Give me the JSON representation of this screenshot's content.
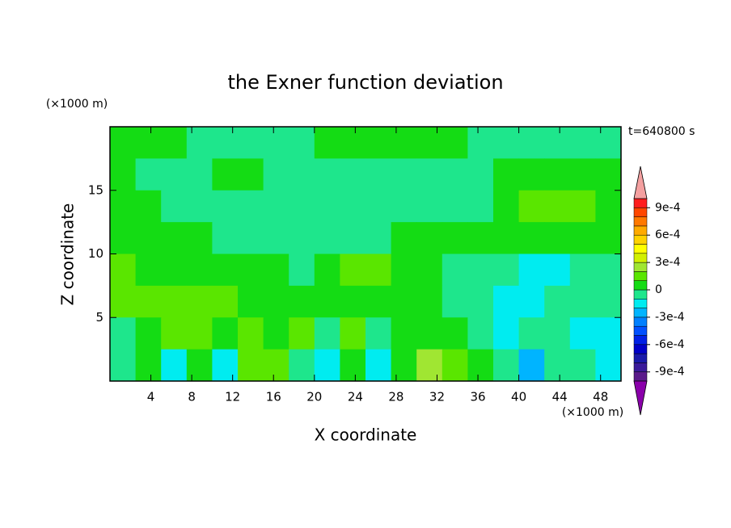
{
  "chart_data": {
    "type": "contour",
    "title": "the Exner function deviation",
    "x_label": "X coordinate",
    "y_label": "Z coordinate",
    "x_unit": "(×1000 m)",
    "y_unit": "(×1000 m)",
    "time_label": "t=640800 s",
    "xlim": [
      0,
      50
    ],
    "ylim": [
      0,
      20
    ],
    "xticks": [
      4,
      8,
      12,
      16,
      20,
      24,
      28,
      32,
      36,
      40,
      44,
      48
    ],
    "yticks": [
      5,
      10,
      15
    ],
    "x": [
      1.25,
      3.75,
      6.25,
      8.75,
      11.25,
      13.75,
      16.25,
      18.75,
      21.25,
      23.75,
      26.25,
      28.75,
      31.25,
      33.75,
      36.25,
      38.75,
      41.25,
      43.75,
      46.25,
      48.75
    ],
    "y": [
      18.75,
      16.25,
      13.75,
      11.25,
      8.75,
      6.25,
      3.75,
      1.25
    ],
    "z": [
      [
        5e-05,
        5e-05,
        5e-05,
        -5e-05,
        -5e-05,
        -5e-05,
        -5e-05,
        -5e-05,
        5e-05,
        5e-05,
        5e-05,
        5e-05,
        5e-05,
        5e-05,
        -5e-05,
        -5e-05,
        -5e-05,
        -5e-05,
        -5e-05,
        -5e-05
      ],
      [
        5e-05,
        -5e-05,
        -5e-05,
        -5e-05,
        5e-05,
        5e-05,
        -5e-05,
        -5e-05,
        -5e-05,
        -5e-05,
        -5e-05,
        -5e-05,
        -5e-05,
        -5e-05,
        -5e-05,
        5e-05,
        5e-05,
        5e-05,
        5e-05,
        5e-05
      ],
      [
        5e-05,
        5e-05,
        -5e-05,
        -5e-05,
        -5e-05,
        -5e-05,
        -5e-05,
        -5e-05,
        -5e-05,
        -5e-05,
        -5e-05,
        -5e-05,
        -5e-05,
        -5e-05,
        -5e-05,
        5e-05,
        0.00015,
        0.00015,
        0.00015,
        5e-05
      ],
      [
        5e-05,
        5e-05,
        5e-05,
        5e-05,
        -5e-05,
        -5e-05,
        -5e-05,
        -5e-05,
        -5e-05,
        -5e-05,
        -5e-05,
        5e-05,
        5e-05,
        5e-05,
        5e-05,
        5e-05,
        5e-05,
        5e-05,
        5e-05,
        5e-05
      ],
      [
        0.00015,
        5e-05,
        5e-05,
        5e-05,
        5e-05,
        5e-05,
        5e-05,
        -5e-05,
        5e-05,
        0.00015,
        0.00015,
        5e-05,
        5e-05,
        -5e-05,
        -5e-05,
        -5e-05,
        -0.00015,
        -0.00015,
        -5e-05,
        -5e-05
      ],
      [
        0.00015,
        0.00015,
        0.00015,
        0.00015,
        0.00015,
        5e-05,
        5e-05,
        5e-05,
        5e-05,
        5e-05,
        5e-05,
        5e-05,
        5e-05,
        -5e-05,
        -5e-05,
        -0.00015,
        -0.00015,
        -5e-05,
        -5e-05,
        -5e-05
      ],
      [
        -5e-05,
        5e-05,
        0.00015,
        0.00015,
        5e-05,
        0.00015,
        5e-05,
        0.00015,
        -5e-05,
        0.00015,
        -5e-05,
        5e-05,
        5e-05,
        5e-05,
        -5e-05,
        -0.00015,
        -5e-05,
        -5e-05,
        -0.00015,
        -0.00015
      ],
      [
        -5e-05,
        5e-05,
        -0.00015,
        5e-05,
        -0.00015,
        0.00015,
        0.00015,
        -5e-05,
        -0.00015,
        5e-05,
        -0.00015,
        5e-05,
        0.00025,
        0.00015,
        5e-05,
        -5e-05,
        -0.00025,
        -5e-05,
        -5e-05,
        -0.00015
      ]
    ],
    "levels": [
      -0.001,
      -0.0009,
      -0.0008,
      -0.0007,
      -0.0006,
      -0.0005,
      -0.0004,
      -0.0003,
      -0.0002,
      -0.0001,
      0,
      0.0001,
      0.0002,
      0.0003,
      0.0004,
      0.0005,
      0.0006,
      0.0007,
      0.0008,
      0.0009,
      0.001
    ],
    "colors": [
      "#5a1a8a",
      "#3a1a9a",
      "#1a1aaa",
      "#0000c8",
      "#0020e6",
      "#0050ff",
      "#0080ff",
      "#00b4ff",
      "#00ecf0",
      "#1ee68c",
      "#14dc14",
      "#5ae600",
      "#a0e632",
      "#d2f000",
      "#ffff00",
      "#ffd200",
      "#ffaa00",
      "#ff7800",
      "#ff4600",
      "#ff1e1e"
    ],
    "under_color": "#8a00aa",
    "over_color": "#f4a0a0",
    "colorbar_ticks": [
      {
        "value": -0.0009,
        "label": "-9e-4"
      },
      {
        "value": -0.0006,
        "label": "-6e-4"
      },
      {
        "value": -0.0003,
        "label": "-3e-4"
      },
      0,
      {
        "value": 0.0003,
        "label": "3e-4"
      },
      {
        "value": 0.0006,
        "label": "6e-4"
      },
      {
        "value": 0.0009,
        "label": "9e-4"
      }
    ]
  }
}
